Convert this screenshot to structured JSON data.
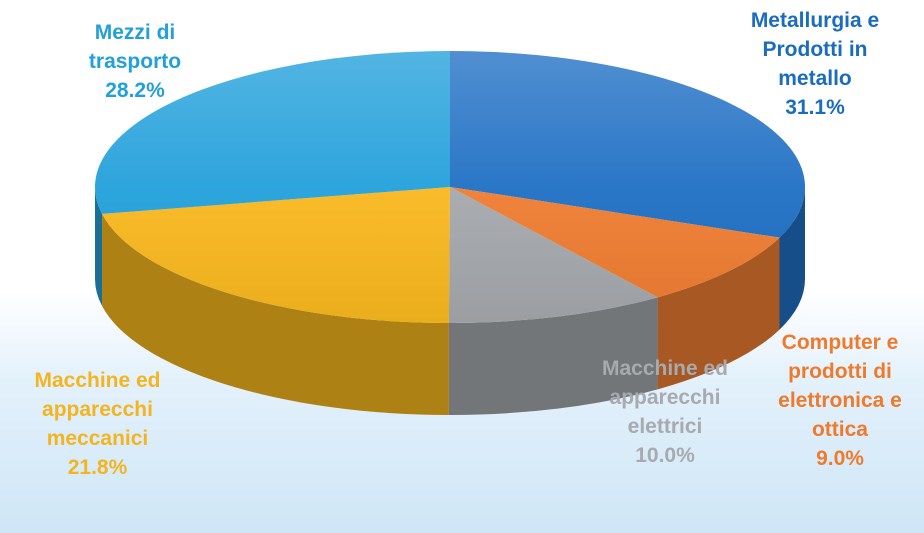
{
  "chart_data": {
    "type": "pie",
    "style": "3d",
    "slices": [
      {
        "label": [
          "Metallurgia e",
          "Prodotti in",
          "metallo"
        ],
        "value": 31.1,
        "value_label": "31.1%",
        "color": "#1f6fc4"
      },
      {
        "label": [
          "Computer e",
          "prodotti di",
          "elettronica e",
          "ottica"
        ],
        "value": 9.0,
        "value_label": "9.0%",
        "color": "#ef7d32"
      },
      {
        "label": [
          "Macchine ed",
          "apparecchi",
          "elettrici"
        ],
        "value": 10.0,
        "value_label": "10.0%",
        "color": "#a5a8ac"
      },
      {
        "label": [
          "Macchine ed",
          "apparecchi",
          "meccanici"
        ],
        "value": 21.8,
        "value_label": "21.8%",
        "color": "#f9b81e"
      },
      {
        "label": [
          "Mezzi di",
          "trasporto"
        ],
        "value": 28.2,
        "value_label": "28.2%",
        "color": "#22a0db"
      }
    ],
    "start_angle_deg": 0,
    "direction": "clockwise",
    "legend": "none"
  }
}
